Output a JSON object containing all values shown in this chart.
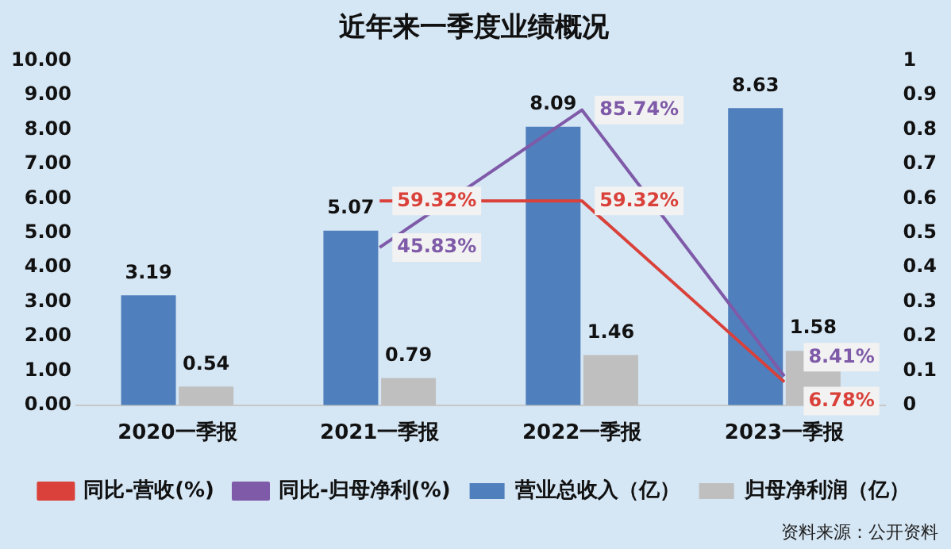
{
  "chart_data": {
    "type": "bar",
    "title": "近年来一季度业绩概况",
    "categories": [
      "2020一季报",
      "2021一季报",
      "2022一季报",
      "2023一季报"
    ],
    "series": [
      {
        "name": "营业总收入（亿）",
        "color": "#4f7fbd",
        "values": [
          3.19,
          5.07,
          8.09,
          8.63
        ],
        "value_labels": [
          "3.19",
          "5.07",
          "8.09",
          "8.63"
        ]
      },
      {
        "name": "归母净利润（亿）",
        "color": "#bfbfbf",
        "values": [
          0.54,
          0.79,
          1.46,
          1.58
        ],
        "value_labels": [
          "0.54",
          "0.79",
          "1.46",
          "1.58"
        ]
      },
      {
        "name": "同比-营收(%)",
        "type": "line",
        "axis": "y2",
        "color": "#d9413a",
        "values": [
          null,
          0.5932,
          0.5932,
          0.0678
        ],
        "value_labels": [
          null,
          "59.32%",
          "59.32%",
          "6.78%"
        ]
      },
      {
        "name": "同比-归母净利(%)",
        "type": "line",
        "axis": "y2",
        "color": "#7e5aa8",
        "values": [
          null,
          0.4583,
          0.8574,
          0.0841
        ],
        "value_labels": [
          null,
          "45.83%",
          "85.74%",
          "8.41%"
        ]
      }
    ],
    "ylim": [
      0,
      10
    ],
    "yticks": [
      {
        "value": 0,
        "label": "0.00"
      },
      {
        "value": 1,
        "label": "1.00"
      },
      {
        "value": 2,
        "label": "2.00"
      },
      {
        "value": 3,
        "label": "3.00"
      },
      {
        "value": 4,
        "label": "4.00"
      },
      {
        "value": 5,
        "label": "5.00"
      },
      {
        "value": 6,
        "label": "6.00"
      },
      {
        "value": 7,
        "label": "7.00"
      },
      {
        "value": 8,
        "label": "8.00"
      },
      {
        "value": 9,
        "label": "9.00"
      },
      {
        "value": 10,
        "label": "10.00"
      }
    ],
    "y2lim": [
      0,
      1
    ],
    "y2ticks": [
      0,
      0.1,
      0.2,
      0.3,
      0.4,
      0.5,
      0.6,
      0.7,
      0.8,
      0.9,
      1
    ],
    "grid": false,
    "legend": "bottom",
    "marker": "none",
    "annotations": [
      "资料来源：公开资料"
    ]
  }
}
